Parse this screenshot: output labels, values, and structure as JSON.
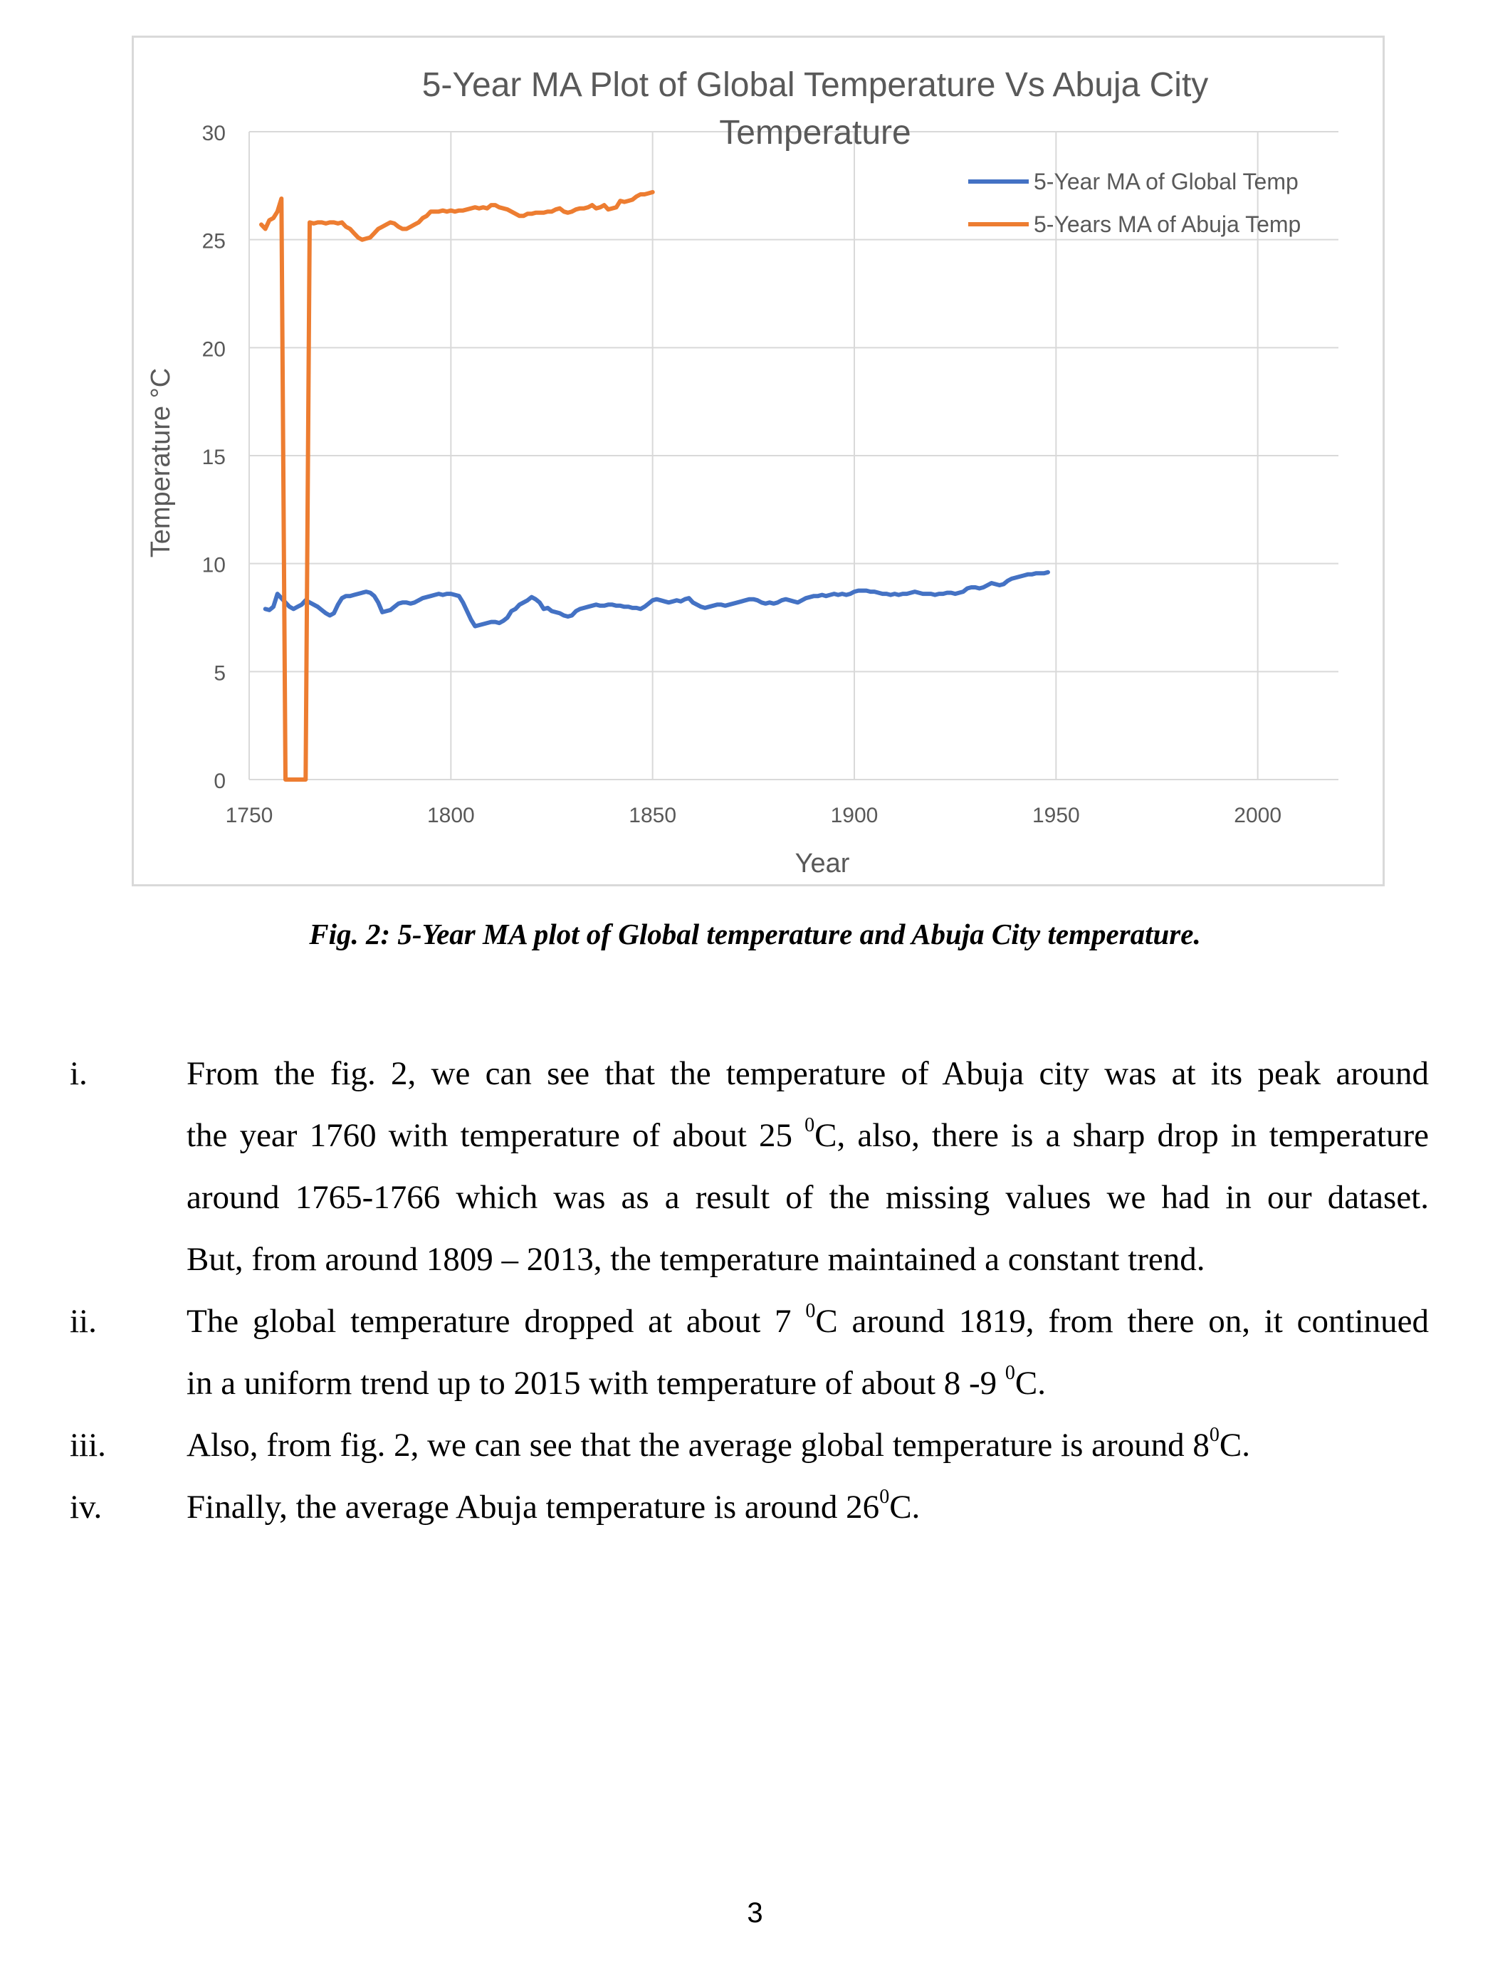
{
  "chart_data": {
    "type": "line",
    "title": "5-Year MA Plot of Global Temperature Vs Abuja City Temperature",
    "xlabel": "Year",
    "ylabel": "Temperature °C",
    "xlim": [
      1750,
      2020
    ],
    "ylim": [
      0,
      30
    ],
    "xticks": [
      1750,
      1800,
      1850,
      1900,
      1950,
      2000
    ],
    "yticks": [
      0,
      5,
      10,
      15,
      20,
      25,
      30
    ],
    "grid": true,
    "legend_position": "top-right",
    "series": [
      {
        "name": "5-Year MA of Global Temp",
        "color": "#4472c4",
        "points": [
          [
            1754,
            7.9
          ],
          [
            1755,
            7.85
          ],
          [
            1756,
            8.0
          ],
          [
            1757,
            8.6
          ],
          [
            1758,
            8.4
          ],
          [
            1759,
            8.2
          ],
          [
            1760,
            8.0
          ],
          [
            1761,
            7.9
          ],
          [
            1762,
            8.0
          ],
          [
            1763,
            8.1
          ],
          [
            1764,
            8.3
          ],
          [
            1765,
            8.2
          ],
          [
            1766,
            8.1
          ],
          [
            1767,
            8.0
          ],
          [
            1768,
            7.85
          ],
          [
            1769,
            7.7
          ],
          [
            1770,
            7.6
          ],
          [
            1771,
            7.7
          ],
          [
            1772,
            8.1
          ],
          [
            1773,
            8.4
          ],
          [
            1774,
            8.5
          ],
          [
            1775,
            8.5
          ],
          [
            1776,
            8.55
          ],
          [
            1777,
            8.6
          ],
          [
            1778,
            8.65
          ],
          [
            1779,
            8.7
          ],
          [
            1780,
            8.65
          ],
          [
            1781,
            8.5
          ],
          [
            1782,
            8.2
          ],
          [
            1783,
            7.75
          ],
          [
            1784,
            7.8
          ],
          [
            1785,
            7.85
          ],
          [
            1786,
            8.0
          ],
          [
            1787,
            8.15
          ],
          [
            1788,
            8.2
          ],
          [
            1789,
            8.2
          ],
          [
            1790,
            8.15
          ],
          [
            1791,
            8.2
          ],
          [
            1792,
            8.3
          ],
          [
            1793,
            8.4
          ],
          [
            1794,
            8.45
          ],
          [
            1795,
            8.5
          ],
          [
            1796,
            8.55
          ],
          [
            1797,
            8.6
          ],
          [
            1798,
            8.55
          ],
          [
            1799,
            8.6
          ],
          [
            1800,
            8.6
          ],
          [
            1801,
            8.55
          ],
          [
            1802,
            8.5
          ],
          [
            1803,
            8.2
          ],
          [
            1804,
            7.8
          ],
          [
            1805,
            7.4
          ],
          [
            1806,
            7.1
          ],
          [
            1807,
            7.15
          ],
          [
            1808,
            7.2
          ],
          [
            1809,
            7.25
          ],
          [
            1810,
            7.3
          ],
          [
            1811,
            7.3
          ],
          [
            1812,
            7.25
          ],
          [
            1813,
            7.35
          ],
          [
            1814,
            7.5
          ],
          [
            1815,
            7.8
          ],
          [
            1816,
            7.9
          ],
          [
            1817,
            8.1
          ],
          [
            1818,
            8.2
          ],
          [
            1819,
            8.3
          ],
          [
            1820,
            8.45
          ],
          [
            1821,
            8.35
          ],
          [
            1822,
            8.2
          ],
          [
            1823,
            7.9
          ],
          [
            1824,
            7.95
          ],
          [
            1825,
            7.8
          ],
          [
            1826,
            7.75
          ],
          [
            1827,
            7.7
          ],
          [
            1828,
            7.6
          ],
          [
            1829,
            7.55
          ],
          [
            1830,
            7.6
          ],
          [
            1831,
            7.8
          ],
          [
            1832,
            7.9
          ],
          [
            1833,
            7.95
          ],
          [
            1834,
            8.0
          ],
          [
            1835,
            8.05
          ],
          [
            1836,
            8.1
          ],
          [
            1837,
            8.05
          ],
          [
            1838,
            8.05
          ],
          [
            1839,
            8.1
          ],
          [
            1840,
            8.1
          ],
          [
            1841,
            8.05
          ],
          [
            1842,
            8.05
          ],
          [
            1843,
            8.0
          ],
          [
            1844,
            8.0
          ],
          [
            1845,
            7.95
          ],
          [
            1846,
            7.95
          ],
          [
            1847,
            7.9
          ],
          [
            1848,
            8.0
          ],
          [
            1849,
            8.15
          ],
          [
            1850,
            8.3
          ],
          [
            1851,
            8.35
          ],
          [
            1852,
            8.3
          ],
          [
            1853,
            8.25
          ],
          [
            1854,
            8.2
          ],
          [
            1855,
            8.25
          ],
          [
            1856,
            8.3
          ],
          [
            1857,
            8.25
          ],
          [
            1858,
            8.35
          ],
          [
            1859,
            8.4
          ],
          [
            1860,
            8.2
          ],
          [
            1861,
            8.1
          ],
          [
            1862,
            8.0
          ],
          [
            1863,
            7.95
          ],
          [
            1864,
            8.0
          ],
          [
            1865,
            8.05
          ],
          [
            1866,
            8.1
          ],
          [
            1867,
            8.1
          ],
          [
            1868,
            8.05
          ],
          [
            1869,
            8.1
          ],
          [
            1870,
            8.15
          ],
          [
            1871,
            8.2
          ],
          [
            1872,
            8.25
          ],
          [
            1873,
            8.3
          ],
          [
            1874,
            8.35
          ],
          [
            1875,
            8.35
          ],
          [
            1876,
            8.3
          ],
          [
            1877,
            8.2
          ],
          [
            1878,
            8.15
          ],
          [
            1879,
            8.2
          ],
          [
            1880,
            8.15
          ],
          [
            1881,
            8.2
          ],
          [
            1882,
            8.3
          ],
          [
            1883,
            8.35
          ],
          [
            1884,
            8.3
          ],
          [
            1885,
            8.25
          ],
          [
            1886,
            8.2
          ],
          [
            1887,
            8.3
          ],
          [
            1888,
            8.4
          ],
          [
            1889,
            8.45
          ],
          [
            1890,
            8.5
          ],
          [
            1891,
            8.5
          ],
          [
            1892,
            8.55
          ],
          [
            1893,
            8.5
          ],
          [
            1894,
            8.55
          ],
          [
            1895,
            8.6
          ],
          [
            1896,
            8.55
          ],
          [
            1897,
            8.6
          ],
          [
            1898,
            8.55
          ],
          [
            1899,
            8.6
          ],
          [
            1900,
            8.7
          ],
          [
            1901,
            8.75
          ],
          [
            1902,
            8.75
          ],
          [
            1903,
            8.75
          ],
          [
            1904,
            8.7
          ],
          [
            1905,
            8.7
          ],
          [
            1906,
            8.65
          ],
          [
            1907,
            8.6
          ],
          [
            1908,
            8.6
          ],
          [
            1909,
            8.55
          ],
          [
            1910,
            8.6
          ],
          [
            1911,
            8.55
          ],
          [
            1912,
            8.6
          ],
          [
            1913,
            8.6
          ],
          [
            1914,
            8.65
          ],
          [
            1915,
            8.7
          ],
          [
            1916,
            8.65
          ],
          [
            1917,
            8.6
          ],
          [
            1918,
            8.6
          ],
          [
            1919,
            8.6
          ],
          [
            1920,
            8.55
          ],
          [
            1921,
            8.6
          ],
          [
            1922,
            8.6
          ],
          [
            1923,
            8.65
          ],
          [
            1924,
            8.65
          ],
          [
            1925,
            8.6
          ],
          [
            1926,
            8.65
          ],
          [
            1927,
            8.7
          ],
          [
            1928,
            8.85
          ],
          [
            1929,
            8.9
          ],
          [
            1930,
            8.9
          ],
          [
            1931,
            8.85
          ],
          [
            1932,
            8.9
          ],
          [
            1933,
            9.0
          ],
          [
            1934,
            9.1
          ],
          [
            1935,
            9.05
          ],
          [
            1936,
            9.0
          ],
          [
            1937,
            9.05
          ],
          [
            1938,
            9.2
          ],
          [
            1939,
            9.3
          ],
          [
            1940,
            9.35
          ],
          [
            1941,
            9.4
          ],
          [
            1942,
            9.45
          ],
          [
            1943,
            9.5
          ],
          [
            1944,
            9.5
          ],
          [
            1945,
            9.55
          ],
          [
            1946,
            9.55
          ],
          [
            1947,
            9.55
          ],
          [
            1948,
            9.6
          ]
        ]
      },
      {
        "name": "5-Years MA of Abuja Temp",
        "color": "#ed7d31",
        "points": [
          [
            1753,
            25.7
          ],
          [
            1754,
            25.5
          ],
          [
            1755,
            25.9
          ],
          [
            1756,
            26.0
          ],
          [
            1757,
            26.3
          ],
          [
            1758,
            26.9
          ],
          [
            1759,
            0
          ],
          [
            1760,
            0
          ],
          [
            1761,
            0
          ],
          [
            1762,
            0
          ],
          [
            1763,
            0
          ],
          [
            1764,
            0
          ],
          [
            1765,
            25.8
          ],
          [
            1766,
            25.75
          ],
          [
            1767,
            25.8
          ],
          [
            1768,
            25.8
          ],
          [
            1769,
            25.75
          ],
          [
            1770,
            25.8
          ],
          [
            1771,
            25.8
          ],
          [
            1772,
            25.75
          ],
          [
            1773,
            25.8
          ],
          [
            1774,
            25.6
          ],
          [
            1775,
            25.5
          ],
          [
            1776,
            25.3
          ],
          [
            1777,
            25.1
          ],
          [
            1778,
            25.0
          ],
          [
            1779,
            25.05
          ],
          [
            1780,
            25.1
          ],
          [
            1781,
            25.3
          ],
          [
            1782,
            25.5
          ],
          [
            1783,
            25.6
          ],
          [
            1784,
            25.7
          ],
          [
            1785,
            25.8
          ],
          [
            1786,
            25.75
          ],
          [
            1787,
            25.6
          ],
          [
            1788,
            25.5
          ],
          [
            1789,
            25.5
          ],
          [
            1790,
            25.6
          ],
          [
            1791,
            25.7
          ],
          [
            1792,
            25.8
          ],
          [
            1793,
            26.0
          ],
          [
            1794,
            26.1
          ],
          [
            1795,
            26.3
          ],
          [
            1796,
            26.3
          ],
          [
            1797,
            26.3
          ],
          [
            1798,
            26.35
          ],
          [
            1799,
            26.3
          ],
          [
            1800,
            26.35
          ],
          [
            1801,
            26.3
          ],
          [
            1802,
            26.35
          ],
          [
            1803,
            26.35
          ],
          [
            1804,
            26.4
          ],
          [
            1805,
            26.45
          ],
          [
            1806,
            26.5
          ],
          [
            1807,
            26.45
          ],
          [
            1808,
            26.5
          ],
          [
            1809,
            26.45
          ],
          [
            1810,
            26.6
          ],
          [
            1811,
            26.6
          ],
          [
            1812,
            26.5
          ],
          [
            1813,
            26.45
          ],
          [
            1814,
            26.4
          ],
          [
            1815,
            26.3
          ],
          [
            1816,
            26.2
          ],
          [
            1817,
            26.1
          ],
          [
            1818,
            26.1
          ],
          [
            1819,
            26.2
          ],
          [
            1820,
            26.2
          ],
          [
            1821,
            26.25
          ],
          [
            1822,
            26.25
          ],
          [
            1823,
            26.25
          ],
          [
            1824,
            26.3
          ],
          [
            1825,
            26.3
          ],
          [
            1826,
            26.4
          ],
          [
            1827,
            26.45
          ],
          [
            1828,
            26.3
          ],
          [
            1829,
            26.25
          ],
          [
            1830,
            26.3
          ],
          [
            1831,
            26.4
          ],
          [
            1832,
            26.45
          ],
          [
            1833,
            26.45
          ],
          [
            1834,
            26.5
          ],
          [
            1835,
            26.6
          ],
          [
            1836,
            26.45
          ],
          [
            1837,
            26.5
          ],
          [
            1838,
            26.6
          ],
          [
            1839,
            26.4
          ],
          [
            1840,
            26.45
          ],
          [
            1841,
            26.5
          ],
          [
            1842,
            26.8
          ],
          [
            1843,
            26.75
          ],
          [
            1844,
            26.8
          ],
          [
            1845,
            26.85
          ],
          [
            1846,
            27.0
          ],
          [
            1847,
            27.1
          ],
          [
            1848,
            27.1
          ],
          [
            1849,
            27.15
          ],
          [
            1850,
            27.2
          ]
        ]
      }
    ]
  },
  "caption": "Fig. 2: 5-Year MA plot of Global temperature and Abuja City temperature.",
  "items": [
    {
      "marker": "i.",
      "lines": [
        "From the fig. 2, we can see that the temperature of Abuja city was at its peak around",
        [
          "the year 1760 with temperature of about 25 ",
          "0",
          "C, also, there is a sharp drop in temperature"
        ],
        "around 1765-1766 which was as a result of the missing values we had in our dataset.",
        "But, from around 1809 – 2013, the temperature maintained a constant trend."
      ]
    },
    {
      "marker": "ii.",
      "lines": [
        [
          "The global temperature dropped at about 7 ",
          "0",
          "C around 1819, from there on, it continued"
        ],
        [
          "in a uniform trend up to 2015 with temperature of about 8 -9 ",
          "0",
          "C."
        ]
      ]
    },
    {
      "marker": "iii.",
      "lines": [
        [
          "Also, from fig. 2, we can see that the average global temperature is around 8",
          "0",
          "C."
        ]
      ]
    },
    {
      "marker": "iv.",
      "lines": [
        [
          "Finally, the average Abuja temperature is around 26",
          "0",
          "C."
        ]
      ]
    }
  ],
  "page_number": "3"
}
